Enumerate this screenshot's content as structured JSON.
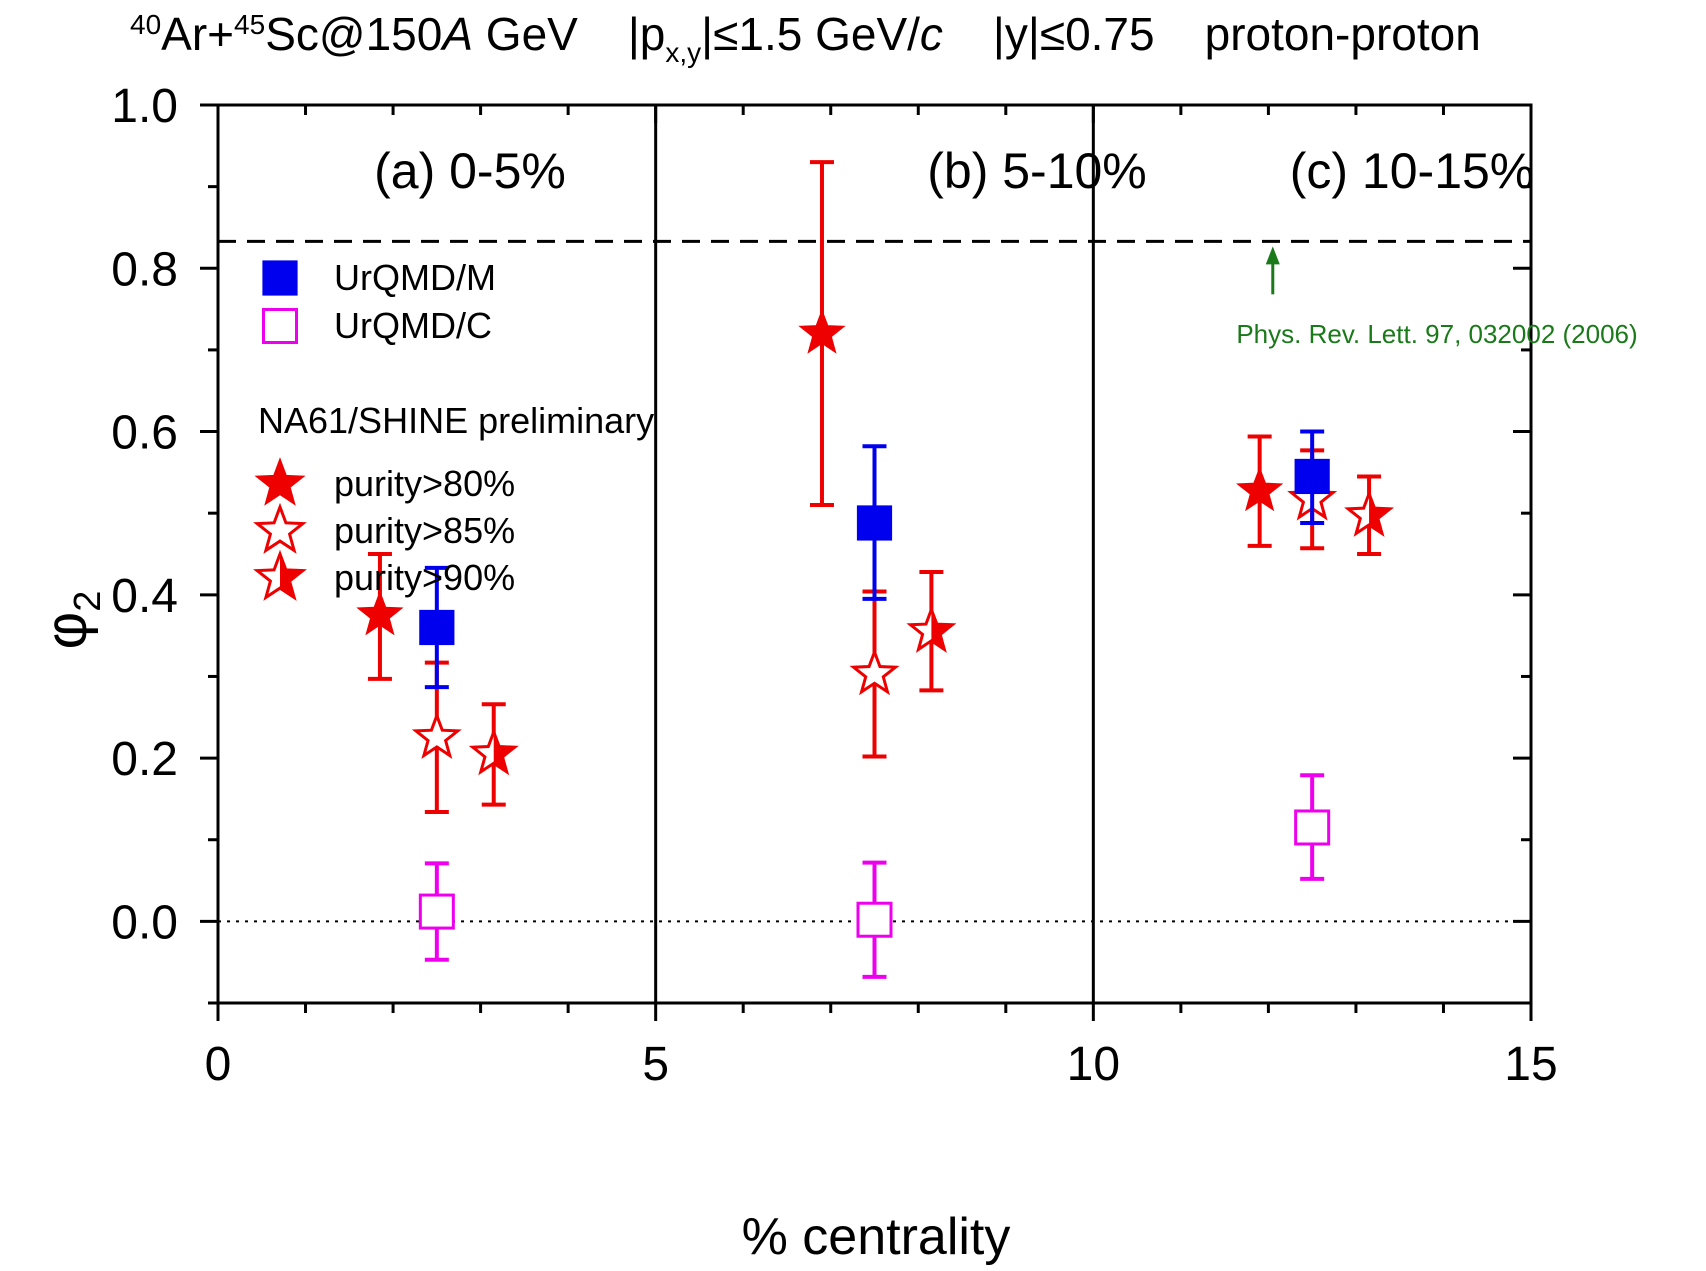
{
  "chart_data": {
    "type": "scatter",
    "title": {
      "prefix_sup1": "40",
      "prefix_el1": "Ar+",
      "prefix_sup2": "45",
      "prefix_el2": "Sc@150",
      "energy_italic": "A",
      "energy_unit": " GeV",
      "p_open": "|p",
      "p_sub": "x,y",
      "p_rest": "|≤1.5 GeV/",
      "p_c": "c",
      "y_cut": "|y|≤0.75",
      "pair": "proton-proton"
    },
    "xlabel": "% centrality",
    "ylabel_main": "φ",
    "ylabel_sub": "2",
    "xlim": [
      0,
      15
    ],
    "ylim": [
      -0.1,
      1.0
    ],
    "xticks": [
      0,
      5,
      10,
      15
    ],
    "xtick_labels": [
      "0",
      "5",
      "10",
      "15"
    ],
    "yticks": [
      0.0,
      0.2,
      0.4,
      0.6,
      0.8,
      1.0
    ],
    "ytick_labels": [
      "0.0",
      "0.2",
      "0.4",
      "0.6",
      "0.8",
      "1.0"
    ],
    "panels": [
      {
        "label": "(a) 0-5%",
        "range": [
          0,
          5
        ]
      },
      {
        "label": "(b) 5-10%",
        "range": [
          5,
          10
        ]
      },
      {
        "label": "(c) 10-15%",
        "range": [
          10,
          15
        ]
      }
    ],
    "reference_line": {
      "y": 0.833,
      "style": "dashed"
    },
    "zero_line": {
      "y": 0.0,
      "style": "dotted"
    },
    "annotation": {
      "text": "Phys. Rev. Lett. 97, 032002 (2006)",
      "color": "#1a7a1a",
      "arrow_x": 12.05,
      "arrow_y": 0.833
    },
    "legend": {
      "placement": "top-left",
      "section_title": "NA61/SHINE preliminary",
      "entries": [
        {
          "name": "UrQMD/M",
          "marker": "square-filled",
          "color": "#0000ee"
        },
        {
          "name": "UrQMD/C",
          "marker": "square-open",
          "color": "#ee00ee"
        },
        {
          "name": "purity>80%",
          "marker": "star-filled",
          "color": "#ee0000"
        },
        {
          "name": "purity>85%",
          "marker": "star-open",
          "color": "#ee0000"
        },
        {
          "name": "purity>90%",
          "marker": "star-half",
          "color": "#ee0000"
        }
      ]
    },
    "series": [
      {
        "name": "purity>80%",
        "marker": "star-filled",
        "color": "#ee0000",
        "points": [
          {
            "x": 1.85,
            "y": 0.375,
            "lo": 0.297,
            "hi": 0.45
          },
          {
            "x": 6.9,
            "y": 0.72,
            "lo": 0.51,
            "hi": 0.93
          },
          {
            "x": 11.9,
            "y": 0.527,
            "lo": 0.46,
            "hi": 0.594
          }
        ]
      },
      {
        "name": "purity>85%",
        "marker": "star-open",
        "color": "#ee0000",
        "points": [
          {
            "x": 2.5,
            "y": 0.225,
            "lo": 0.134,
            "hi": 0.317
          },
          {
            "x": 7.5,
            "y": 0.303,
            "lo": 0.202,
            "hi": 0.404
          },
          {
            "x": 12.5,
            "y": 0.517,
            "lo": 0.457,
            "hi": 0.577
          }
        ]
      },
      {
        "name": "purity>90%",
        "marker": "star-half",
        "color": "#ee0000",
        "points": [
          {
            "x": 3.15,
            "y": 0.205,
            "lo": 0.143,
            "hi": 0.266
          },
          {
            "x": 8.15,
            "y": 0.355,
            "lo": 0.283,
            "hi": 0.428
          },
          {
            "x": 13.15,
            "y": 0.497,
            "lo": 0.45,
            "hi": 0.545
          }
        ]
      },
      {
        "name": "UrQMD/M",
        "marker": "square-filled",
        "color": "#0000ee",
        "points": [
          {
            "x": 2.5,
            "y": 0.36,
            "lo": 0.287,
            "hi": 0.433
          },
          {
            "x": 7.5,
            "y": 0.488,
            "lo": 0.395,
            "hi": 0.582
          },
          {
            "x": 12.5,
            "y": 0.545,
            "lo": 0.488,
            "hi": 0.6
          }
        ]
      },
      {
        "name": "UrQMD/C",
        "marker": "square-open",
        "color": "#ee00ee",
        "points": [
          {
            "x": 2.5,
            "y": 0.012,
            "lo": -0.047,
            "hi": 0.071
          },
          {
            "x": 7.5,
            "y": 0.002,
            "lo": -0.068,
            "hi": 0.072
          },
          {
            "x": 12.5,
            "y": 0.115,
            "lo": 0.052,
            "hi": 0.179
          }
        ]
      }
    ]
  }
}
